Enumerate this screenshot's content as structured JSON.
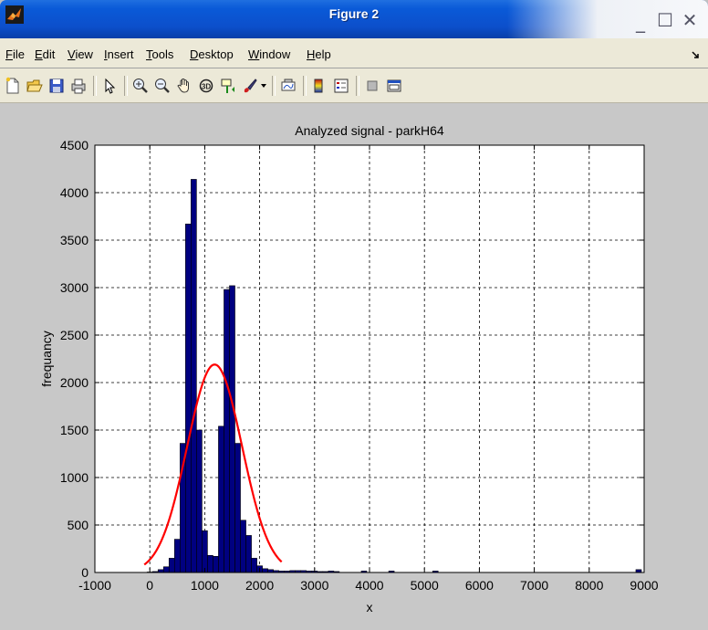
{
  "window": {
    "title": "Figure 2",
    "controls": {
      "minimize": "_",
      "maximize": "☐",
      "close": "✕"
    }
  },
  "menu": {
    "items": [
      {
        "label": "File"
      },
      {
        "label": "Edit"
      },
      {
        "label": "View"
      },
      {
        "label": "Insert"
      },
      {
        "label": "Tools"
      },
      {
        "label": "Desktop"
      },
      {
        "label": "Window"
      },
      {
        "label": "Help"
      }
    ],
    "overflow_icon": "arrow-icon"
  },
  "toolbar": {
    "buttons": [
      {
        "name": "new-figure",
        "icon": "new-file-icon"
      },
      {
        "name": "open-file",
        "icon": "folder-icon"
      },
      {
        "name": "save-figure",
        "icon": "save-icon"
      },
      {
        "name": "print-figure",
        "icon": "printer-icon"
      },
      {
        "name": "edit-plot",
        "icon": "pointer-arrow-icon"
      },
      {
        "name": "zoom-in",
        "icon": "zoom-in-icon"
      },
      {
        "name": "zoom-out",
        "icon": "zoom-out-icon"
      },
      {
        "name": "pan",
        "icon": "hand-icon"
      },
      {
        "name": "rotate-3d",
        "icon": "rotate-3d-icon"
      },
      {
        "name": "data-cursor",
        "icon": "data-cursor-icon"
      },
      {
        "name": "brush",
        "icon": "brush-icon"
      },
      {
        "name": "link-plot",
        "icon": "link-plot-icon"
      },
      {
        "name": "insert-colorbar",
        "icon": "colorbar-icon"
      },
      {
        "name": "insert-legend",
        "icon": "legend-icon"
      },
      {
        "name": "hide-plot-tools",
        "icon": "hide-tools-icon"
      },
      {
        "name": "show-plot-tools",
        "icon": "show-tools-icon"
      }
    ]
  },
  "colors": {
    "bar_fill": "#000080",
    "curve": "#ff0000",
    "figure_bg": "#c8c8c8",
    "axes_bg": "#ffffff"
  },
  "chart_data": {
    "type": "bar",
    "title": "Analyzed signal - parkH64",
    "xlabel": "x",
    "ylabel": "frequancy",
    "xlim": [
      -1000,
      9000
    ],
    "ylim": [
      0,
      4500
    ],
    "grid": true,
    "xticks": [
      -1000,
      0,
      1000,
      2000,
      3000,
      4000,
      5000,
      6000,
      7000,
      8000,
      9000
    ],
    "yticks": [
      0,
      500,
      1000,
      1500,
      2000,
      2500,
      3000,
      3500,
      4000,
      4500
    ],
    "series": [
      {
        "kind": "histogram",
        "bin_width": 100,
        "bins": [
          {
            "x": 0,
            "y": 5
          },
          {
            "x": 100,
            "y": 10
          },
          {
            "x": 200,
            "y": 30
          },
          {
            "x": 300,
            "y": 60
          },
          {
            "x": 400,
            "y": 150
          },
          {
            "x": 500,
            "y": 350
          },
          {
            "x": 600,
            "y": 1360
          },
          {
            "x": 700,
            "y": 3670
          },
          {
            "x": 800,
            "y": 4140
          },
          {
            "x": 900,
            "y": 1500
          },
          {
            "x": 1000,
            "y": 440
          },
          {
            "x": 1100,
            "y": 180
          },
          {
            "x": 1200,
            "y": 170
          },
          {
            "x": 1300,
            "y": 1540
          },
          {
            "x": 1400,
            "y": 2980
          },
          {
            "x": 1500,
            "y": 3020
          },
          {
            "x": 1600,
            "y": 1360
          },
          {
            "x": 1700,
            "y": 550
          },
          {
            "x": 1800,
            "y": 390
          },
          {
            "x": 1900,
            "y": 150
          },
          {
            "x": 2000,
            "y": 70
          },
          {
            "x": 2100,
            "y": 40
          },
          {
            "x": 2200,
            "y": 30
          },
          {
            "x": 2300,
            "y": 20
          },
          {
            "x": 2400,
            "y": 15
          },
          {
            "x": 2500,
            "y": 15
          },
          {
            "x": 2600,
            "y": 20
          },
          {
            "x": 2700,
            "y": 20
          },
          {
            "x": 2800,
            "y": 20
          },
          {
            "x": 2900,
            "y": 15
          },
          {
            "x": 3000,
            "y": 15
          },
          {
            "x": 3100,
            "y": 10
          },
          {
            "x": 3200,
            "y": 10
          },
          {
            "x": 3300,
            "y": 15
          },
          {
            "x": 3400,
            "y": 10
          },
          {
            "x": 3900,
            "y": 15
          },
          {
            "x": 4400,
            "y": 15
          },
          {
            "x": 5200,
            "y": 15
          },
          {
            "x": 8900,
            "y": 30
          }
        ]
      },
      {
        "kind": "curve",
        "distribution": "normal",
        "mu": 1180,
        "sigma": 500,
        "peak": 2190,
        "x_range": [
          -100,
          2400
        ]
      }
    ]
  }
}
